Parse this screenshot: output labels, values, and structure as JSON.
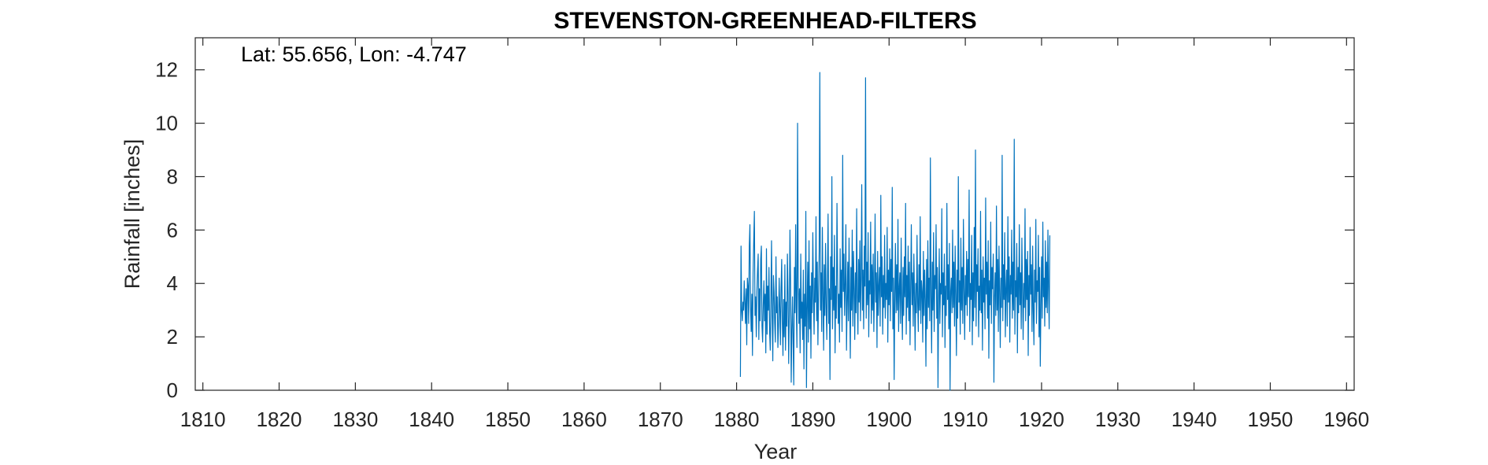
{
  "chart_data": {
    "type": "line",
    "title": "STEVENSTON-GREENHEAD-FILTERS",
    "annotation": "Lat: 55.656, Lon: -4.747",
    "xlabel": "Year",
    "ylabel": "Rainfall [inches]",
    "xlim": [
      1809,
      1961
    ],
    "ylim": [
      0,
      13.2
    ],
    "xticks": [
      1810,
      1820,
      1830,
      1840,
      1850,
      1860,
      1870,
      1880,
      1890,
      1900,
      1910,
      1920,
      1930,
      1940,
      1950,
      1960
    ],
    "yticks": [
      0,
      2,
      4,
      6,
      8,
      10,
      12
    ],
    "grid": false,
    "line_color": "#0072BD",
    "series": [
      {
        "x_start": 1880.5,
        "x_step": 0.0833333,
        "values": [
          0.5,
          5.4,
          3.0,
          2.6,
          3.3,
          3.0,
          4.1,
          3.3,
          2.5,
          3.8,
          1.7,
          4.2,
          3.9,
          2.5,
          5.4,
          6.2,
          3.1,
          2.2,
          3.6,
          1.3,
          4.4,
          5.6,
          6.7,
          2.8,
          3.5,
          2.0,
          3.7,
          4.5,
          5.1,
          1.9,
          3.8,
          2.6,
          4.9,
          5.4,
          2.4,
          1.8,
          3.2,
          4.1,
          2.6,
          3.6,
          1.4,
          5.3,
          2.1,
          3.9,
          3.0,
          4.6,
          2.2,
          1.5,
          3.4,
          5.6,
          2.8,
          1.1,
          4.3,
          3.7,
          2.5,
          1.8,
          5.0,
          2.9,
          3.5,
          1.6,
          2.4,
          4.2,
          3.1,
          1.7,
          3.8,
          4.9,
          2.6,
          1.3,
          3.4,
          2.0,
          4.7,
          1.5,
          3.3,
          2.4,
          5.1,
          3.6,
          1.0,
          2.8,
          6.0,
          4.0,
          0.3,
          2.2,
          3.5,
          1.9,
          0.2,
          4.6,
          2.9,
          6.2,
          3.1,
          1.6,
          10.0,
          4.2,
          2.5,
          3.8,
          1.4,
          5.1,
          2.7,
          3.3,
          1.9,
          4.5,
          0.8,
          3.6,
          2.4,
          6.7,
          0.1,
          3.0,
          4.8,
          1.8,
          5.6,
          2.3,
          3.9,
          1.2,
          4.4,
          2.9,
          5.9,
          3.5,
          2.1,
          4.2,
          3.3,
          6.5,
          2.6,
          4.8,
          1.7,
          3.5,
          5.2,
          11.9,
          3.0,
          4.4,
          2.2,
          6.1,
          3.6,
          1.5,
          4.7,
          2.8,
          5.5,
          3.2,
          1.9,
          4.1,
          6.6,
          2.5,
          3.8,
          0.4,
          5.0,
          3.4,
          8.0,
          2.3,
          4.6,
          3.0,
          5.8,
          1.4,
          3.9,
          2.7,
          7.0,
          4.3,
          2.5,
          3.6,
          1.8,
          5.3,
          3.1,
          4.5,
          2.2,
          8.8,
          3.7,
          5.1,
          2.8,
          4.0,
          6.2,
          1.5,
          3.3,
          4.8,
          2.6,
          5.7,
          3.4,
          1.2,
          4.6,
          3.0,
          6.0,
          2.4,
          5.2,
          3.8,
          1.9,
          4.4,
          2.9,
          6.8,
          3.5,
          2.1,
          4.9,
          3.3,
          5.6,
          2.6,
          4.2,
          7.7,
          3.0,
          4.5,
          2.3,
          5.4,
          3.9,
          11.7,
          2.7,
          4.8,
          3.2,
          5.9,
          2.0,
          4.1,
          3.6,
          6.3,
          2.5,
          4.7,
          3.0,
          5.1,
          2.2,
          3.8,
          6.6,
          3.3,
          4.4,
          1.6,
          5.2,
          2.8,
          3.9,
          4.6,
          2.4,
          7.3,
          3.5,
          5.0,
          2.1,
          4.3,
          3.1,
          5.8,
          2.7,
          4.0,
          3.4,
          6.1,
          1.8,
          4.5,
          3.2,
          5.3,
          2.6,
          4.9,
          3.7,
          7.6,
          2.3,
          4.2,
          0.4,
          3.6,
          5.5,
          2.9,
          4.7,
          3.0,
          6.4,
          2.2,
          3.8,
          4.4,
          2.5,
          5.7,
          3.3,
          1.9,
          4.6,
          2.8,
          5.0,
          3.5,
          7.0,
          2.1,
          4.3,
          3.1,
          5.4,
          2.6,
          4.8,
          1.7,
          3.9,
          6.2,
          3.2,
          4.4,
          2.4,
          5.1,
          3.6,
          1.5,
          4.0,
          2.9,
          5.8,
          3.3,
          2.2,
          4.7,
          3.0,
          6.5,
          2.5,
          4.1,
          3.7,
          1.8,
          5.2,
          2.8,
          4.5,
          3.4,
          0.9,
          4.9,
          2.3,
          5.6,
          3.1,
          4.2,
          2.6,
          8.7,
          3.5,
          1.4,
          4.8,
          3.0,
          5.9,
          2.2,
          4.3,
          3.8,
          6.2,
          2.7,
          4.6,
          0.1,
          3.3,
          5.3,
          2.5,
          4.0,
          3.6,
          6.8,
          2.0,
          4.4,
          3.2,
          5.1,
          1.6,
          3.9,
          2.8,
          7.0,
          3.4,
          4.7,
          2.3,
          5.5,
          0.0,
          3.7,
          4.2,
          2.9,
          6.0,
          3.1,
          4.8,
          2.4,
          5.4,
          3.6,
          1.3,
          4.5,
          2.7,
          8.0,
          3.3,
          4.1,
          2.1,
          5.7,
          3.0,
          4.6,
          2.5,
          6.4,
          3.8,
          1.9,
          4.3,
          3.2,
          5.2,
          2.8,
          4.9,
          3.5,
          7.5,
          2.2,
          4.0,
          3.4,
          5.8,
          1.7,
          4.4,
          2.6,
          6.1,
          3.1,
          9.0,
          2.4,
          4.7,
          3.7,
          5.3,
          2.0,
          3.9,
          3.0,
          6.7,
          2.9,
          4.5,
          1.5,
          5.0,
          3.3,
          4.2,
          2.3,
          7.2,
          3.6,
          4.8,
          2.7,
          5.6,
          1.2,
          4.1,
          3.2,
          6.3,
          2.5,
          4.6,
          3.8,
          5.1,
          0.3,
          3.5,
          4.4,
          2.8,
          6.9,
          3.0,
          4.9,
          2.2,
          5.4,
          3.7,
          1.6,
          4.2,
          3.1,
          8.8,
          2.6,
          4.7,
          3.4,
          5.9,
          2.0,
          3.8,
          4.5,
          2.4,
          6.5,
          3.3,
          5.0,
          1.8,
          4.3,
          3.6,
          6.0,
          2.7,
          4.8,
          3.0,
          9.4,
          2.1,
          4.1,
          3.5,
          5.5,
          1.4,
          4.6,
          2.9,
          6.2,
          3.2,
          4.4,
          2.3,
          5.7,
          3.8,
          1.9,
          4.0,
          3.1,
          6.8,
          2.6,
          4.9,
          3.4,
          5.2,
          1.3,
          4.3,
          2.8,
          6.1,
          3.6,
          4.7,
          2.2,
          5.4,
          3.0,
          1.7,
          4.5,
          3.3,
          6.4,
          2.5,
          4.1,
          3.7,
          5.8,
          2.0,
          4.6,
          0.9,
          3.2,
          5.0,
          2.7,
          6.3,
          3.5,
          4.2,
          2.4,
          5.6,
          3.1,
          4.8,
          2.9,
          6.0,
          3.8,
          2.3,
          5.8
        ]
      }
    ]
  }
}
